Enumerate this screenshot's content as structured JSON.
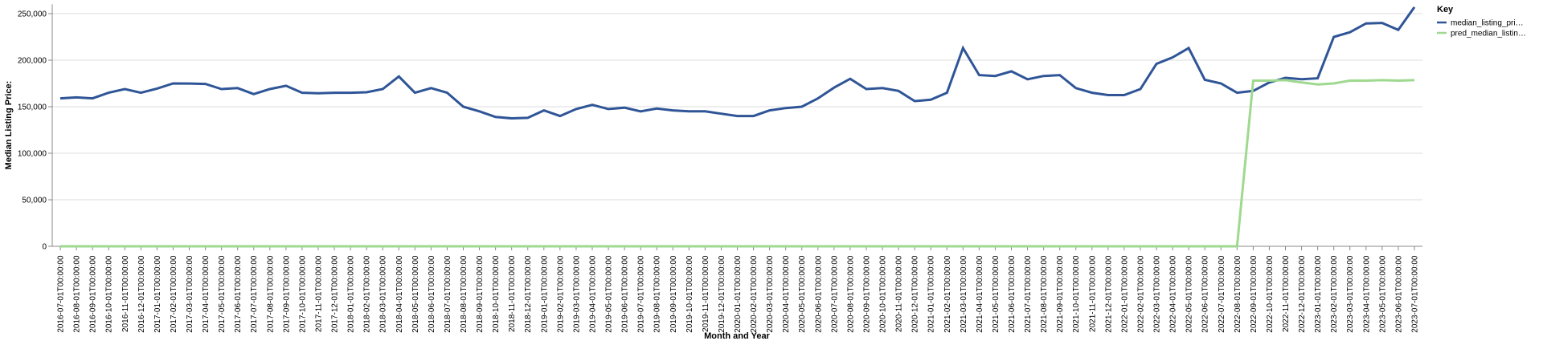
{
  "chart_data": {
    "type": "line",
    "y_label": "Median Listing Price:",
    "x_label": "Month and Year",
    "legend_title": "Key",
    "legend_position": "right",
    "grid": true,
    "ylim": [
      0,
      260000
    ],
    "yticks": [
      0,
      {
        "value": 50000,
        "label": "50,000"
      },
      {
        "value": 100000,
        "label": "100,000"
      },
      {
        "value": 150000,
        "label": "150,000"
      },
      {
        "value": 200000,
        "label": "200,000"
      },
      {
        "value": 250000,
        "label": "250,000"
      }
    ],
    "categories": [
      "2016-07-01T00:00:00",
      "2016-08-01T00:00:00",
      "2016-09-01T00:00:00",
      "2016-10-01T00:00:00",
      "2016-11-01T00:00:00",
      "2016-12-01T00:00:00",
      "2017-01-01T00:00:00",
      "2017-02-01T00:00:00",
      "2017-03-01T00:00:00",
      "2017-04-01T00:00:00",
      "2017-05-01T00:00:00",
      "2017-06-01T00:00:00",
      "2017-07-01T00:00:00",
      "2017-08-01T00:00:00",
      "2017-09-01T00:00:00",
      "2017-10-01T00:00:00",
      "2017-11-01T00:00:00",
      "2017-12-01T00:00:00",
      "2018-01-01T00:00:00",
      "2018-02-01T00:00:00",
      "2018-03-01T00:00:00",
      "2018-04-01T00:00:00",
      "2018-05-01T00:00:00",
      "2018-06-01T00:00:00",
      "2018-07-01T00:00:00",
      "2018-08-01T00:00:00",
      "2018-09-01T00:00:00",
      "2018-10-01T00:00:00",
      "2018-11-01T00:00:00",
      "2018-12-01T00:00:00",
      "2019-01-01T00:00:00",
      "2019-02-01T00:00:00",
      "2019-03-01T00:00:00",
      "2019-04-01T00:00:00",
      "2019-05-01T00:00:00",
      "2019-06-01T00:00:00",
      "2019-07-01T00:00:00",
      "2019-08-01T00:00:00",
      "2019-09-01T00:00:00",
      "2019-10-01T00:00:00",
      "2019-11-01T00:00:00",
      "2019-12-01T00:00:00",
      "2020-01-01T00:00:00",
      "2020-02-01T00:00:00",
      "2020-03-01T00:00:00",
      "2020-04-01T00:00:00",
      "2020-05-01T00:00:00",
      "2020-06-01T00:00:00",
      "2020-07-01T00:00:00",
      "2020-08-01T00:00:00",
      "2020-09-01T00:00:00",
      "2020-10-01T00:00:00",
      "2020-11-01T00:00:00",
      "2020-12-01T00:00:00",
      "2021-01-01T00:00:00",
      "2021-02-01T00:00:00",
      "2021-03-01T00:00:00",
      "2021-04-01T00:00:00",
      "2021-05-01T00:00:00",
      "2021-06-01T00:00:00",
      "2021-07-01T00:00:00",
      "2021-08-01T00:00:00",
      "2021-09-01T00:00:00",
      "2021-10-01T00:00:00",
      "2021-11-01T00:00:00",
      "2021-12-01T00:00:00",
      "2022-01-01T00:00:00",
      "2022-02-01T00:00:00",
      "2022-03-01T00:00:00",
      "2022-04-01T00:00:00",
      "2022-05-01T00:00:00",
      "2022-06-01T00:00:00",
      "2022-07-01T00:00:00",
      "2022-08-01T00:00:00",
      "2022-09-01T00:00:00",
      "2022-10-01T00:00:00",
      "2022-11-01T00:00:00",
      "2022-12-01T00:00:00",
      "2023-01-01T00:00:00",
      "2023-02-01T00:00:00",
      "2023-03-01T00:00:00",
      "2023-04-01T00:00:00",
      "2023-05-01T00:00:00",
      "2023-06-01T00:00:00",
      "2023-07-01T00:00:00"
    ],
    "series": [
      {
        "name": "median_listing_pri…",
        "color": "#2f5597",
        "values": [
          159000,
          160000,
          159000,
          165000,
          169000,
          165000,
          169500,
          175000,
          174900,
          174500,
          169000,
          170000,
          163500,
          169000,
          172500,
          165000,
          164500,
          165000,
          165000,
          165500,
          169000,
          182500,
          165000,
          170000,
          165000,
          150000,
          145000,
          139000,
          137500,
          138000,
          146000,
          140000,
          147500,
          152000,
          147500,
          149000,
          145000,
          148000,
          146000,
          145000,
          145000,
          142500,
          140000,
          140000,
          146000,
          148500,
          150000,
          159000,
          170500,
          180000,
          169000,
          170000,
          167000,
          156000,
          157500,
          165000,
          213000,
          184000,
          183000,
          188000,
          179500,
          183000,
          184000,
          170000,
          165000,
          162500,
          162500,
          169000,
          196000,
          203000,
          213000,
          179000,
          175000,
          165000,
          167000,
          176000,
          181000,
          179500,
          180500,
          225000,
          230000,
          239500,
          240000,
          232500,
          257000
        ]
      },
      {
        "name": "pred_median_listin…",
        "color": "#9fd98f",
        "values": [
          0,
          0,
          0,
          0,
          0,
          0,
          0,
          0,
          0,
          0,
          0,
          0,
          0,
          0,
          0,
          0,
          0,
          0,
          0,
          0,
          0,
          0,
          0,
          0,
          0,
          0,
          0,
          0,
          0,
          0,
          0,
          0,
          0,
          0,
          0,
          0,
          0,
          0,
          0,
          0,
          0,
          0,
          0,
          0,
          0,
          0,
          0,
          0,
          0,
          0,
          0,
          0,
          0,
          0,
          0,
          0,
          0,
          0,
          0,
          0,
          0,
          0,
          0,
          0,
          0,
          0,
          0,
          0,
          0,
          0,
          0,
          0,
          0,
          0,
          178000,
          178000,
          178500,
          176000,
          174000,
          175000,
          178000,
          178000,
          178500,
          178000,
          178500
        ]
      }
    ]
  }
}
